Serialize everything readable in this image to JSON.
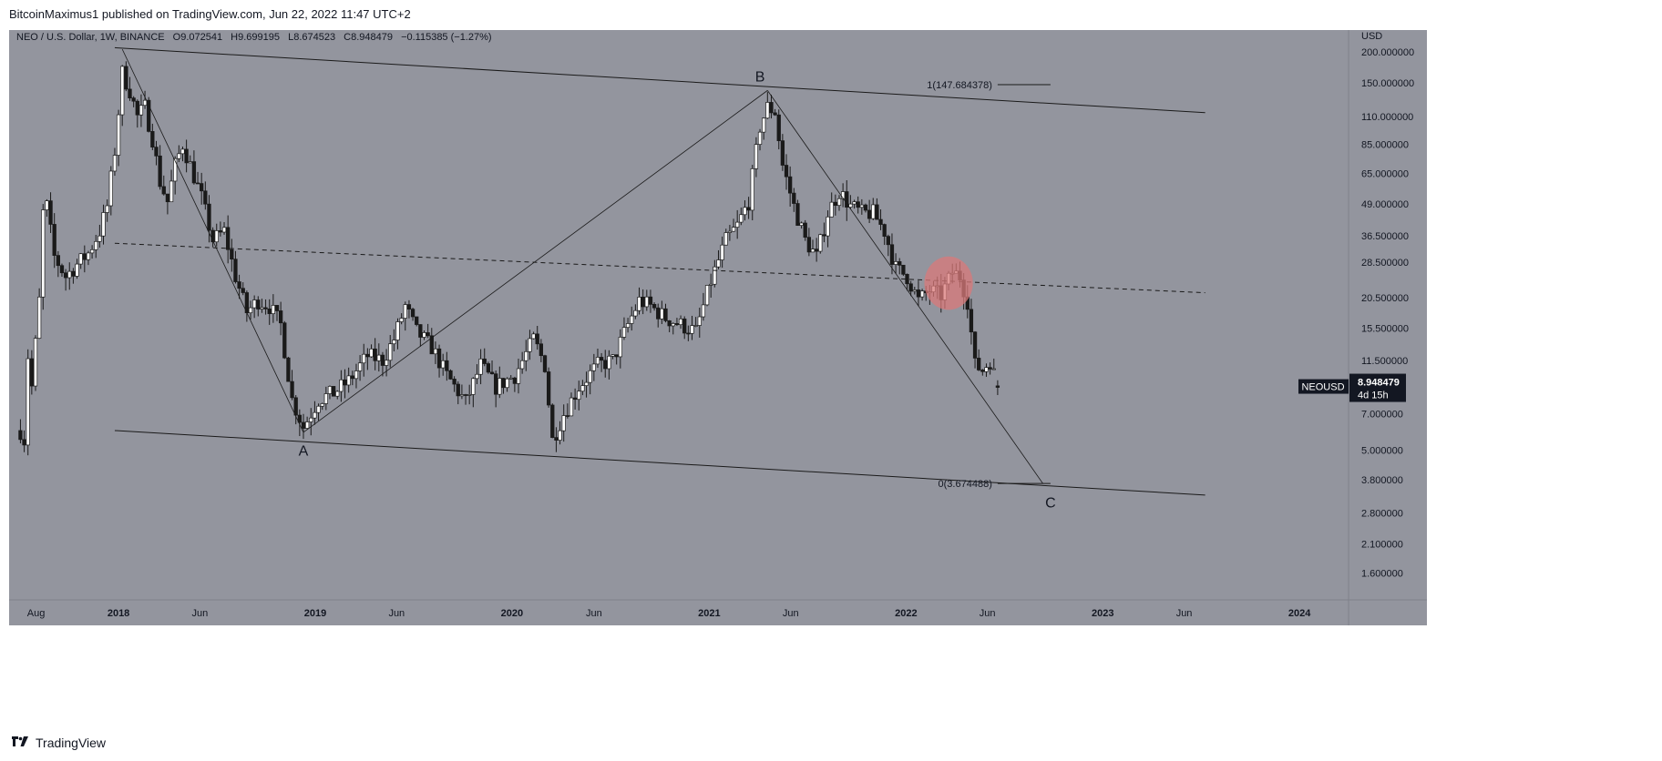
{
  "header": {
    "published": "BitcoinMaximus1 published on TradingView.com, Jun 22, 2022 11:47 UTC+2"
  },
  "footer": {
    "brand": "TradingView",
    "logo_icon": "tradingview-logo-icon"
  },
  "legend": {
    "symbol": "NEO / U.S. Dollar, 1W, BINANCE",
    "o_label": "O",
    "o_value": "9.072541",
    "h_label": "H",
    "h_value": "9.699195",
    "l_label": "L",
    "l_value": "8.674523",
    "c_label": "C",
    "c_value": "8.948479",
    "change": "−0.115385 (−1.27%)"
  },
  "price_tag": {
    "symbol": "NEOUSD",
    "price": "8.948479",
    "countdown": "4d 15h",
    "value": 8.948479
  },
  "colors": {
    "background": "#93959e",
    "candle": "#1a1a1a",
    "line": "#1a1a1a",
    "highlight": "#d97a7a",
    "label_bg": "#131722",
    "axis_bg": "#93959e"
  },
  "chart_data": {
    "type": "candlestick",
    "title": "NEO / U.S. Dollar, 1W, BINANCE",
    "y_unit_label": "USD",
    "y_scale": "log",
    "ylim": [
      1.25,
      245
    ],
    "xlim": [
      "2017-06-12",
      "2024-04-01"
    ],
    "y_ticks": [
      {
        "label": "200.000000",
        "value": 200
      },
      {
        "label": "150.000000",
        "value": 150
      },
      {
        "label": "110.000000",
        "value": 110
      },
      {
        "label": "85.000000",
        "value": 85
      },
      {
        "label": "65.000000",
        "value": 65
      },
      {
        "label": "49.000000",
        "value": 49
      },
      {
        "label": "36.500000",
        "value": 36.5
      },
      {
        "label": "28.500000",
        "value": 28.5
      },
      {
        "label": "20.500000",
        "value": 20.5
      },
      {
        "label": "15.500000",
        "value": 15.5
      },
      {
        "label": "11.500000",
        "value": 11.5
      },
      {
        "label": "7.000000",
        "value": 7
      },
      {
        "label": "5.000000",
        "value": 5
      },
      {
        "label": "3.800000",
        "value": 3.8
      },
      {
        "label": "2.800000",
        "value": 2.8
      },
      {
        "label": "2.100000",
        "value": 2.1
      },
      {
        "label": "1.600000",
        "value": 1.6
      }
    ],
    "x_ticks": [
      {
        "label": "Aug",
        "date": "2017-08-01",
        "bold": false
      },
      {
        "label": "2018",
        "date": "2018-01-01",
        "bold": true
      },
      {
        "label": "Jun",
        "date": "2018-06-01",
        "bold": false
      },
      {
        "label": "2019",
        "date": "2019-01-01",
        "bold": true
      },
      {
        "label": "Jun",
        "date": "2019-06-01",
        "bold": false
      },
      {
        "label": "2020",
        "date": "2020-01-01",
        "bold": true
      },
      {
        "label": "Jun",
        "date": "2020-06-01",
        "bold": false
      },
      {
        "label": "2021",
        "date": "2021-01-01",
        "bold": true
      },
      {
        "label": "Jun",
        "date": "2021-06-01",
        "bold": false
      },
      {
        "label": "2022",
        "date": "2022-01-01",
        "bold": true
      },
      {
        "label": "Jun",
        "date": "2022-06-01",
        "bold": false
      },
      {
        "label": "2023",
        "date": "2023-01-01",
        "bold": true
      },
      {
        "label": "Jun",
        "date": "2023-06-01",
        "bold": false
      },
      {
        "label": "2024",
        "date": "2024-01-01",
        "bold": true
      }
    ],
    "price_path": [
      [
        "2017-07-03",
        6
      ],
      [
        "2017-07-10",
        5.5
      ],
      [
        "2017-07-17",
        12
      ],
      [
        "2017-07-24",
        9
      ],
      [
        "2017-08-07",
        20
      ],
      [
        "2017-08-14",
        45
      ],
      [
        "2017-08-21",
        48
      ],
      [
        "2017-09-04",
        30
      ],
      [
        "2017-09-25",
        25
      ],
      [
        "2017-10-16",
        28
      ],
      [
        "2017-11-06",
        31
      ],
      [
        "2017-11-27",
        38
      ],
      [
        "2017-12-11",
        48
      ],
      [
        "2017-12-25",
        80
      ],
      [
        "2018-01-08",
        165
      ],
      [
        "2018-01-22",
        140
      ],
      [
        "2018-02-05",
        110
      ],
      [
        "2018-02-19",
        120
      ],
      [
        "2018-03-05",
        90
      ],
      [
        "2018-03-19",
        60
      ],
      [
        "2018-04-02",
        50
      ],
      [
        "2018-04-16",
        70
      ],
      [
        "2018-04-30",
        85
      ],
      [
        "2018-05-14",
        70
      ],
      [
        "2018-06-04",
        52
      ],
      [
        "2018-06-25",
        35
      ],
      [
        "2018-07-16",
        38
      ],
      [
        "2018-08-06",
        25
      ],
      [
        "2018-08-27",
        18
      ],
      [
        "2018-09-17",
        20
      ],
      [
        "2018-10-08",
        19
      ],
      [
        "2018-10-29",
        16
      ],
      [
        "2018-11-19",
        8
      ],
      [
        "2018-12-10",
        6.2
      ],
      [
        "2019-01-07",
        8
      ],
      [
        "2019-02-04",
        8.5
      ],
      [
        "2019-03-04",
        9.5
      ],
      [
        "2019-04-08",
        12
      ],
      [
        "2019-05-06",
        11.5
      ],
      [
        "2019-05-27",
        14
      ],
      [
        "2019-06-17",
        19
      ],
      [
        "2019-07-08",
        15
      ],
      [
        "2019-08-05",
        13
      ],
      [
        "2019-09-02",
        10
      ],
      [
        "2019-10-07",
        7.8
      ],
      [
        "2019-11-04",
        11
      ],
      [
        "2019-12-02",
        9
      ],
      [
        "2020-01-06",
        10
      ],
      [
        "2020-02-10",
        14
      ],
      [
        "2020-03-02",
        11
      ],
      [
        "2020-03-16",
        5.5
      ],
      [
        "2020-04-06",
        7
      ],
      [
        "2020-05-04",
        9
      ],
      [
        "2020-06-08",
        11
      ],
      [
        "2020-07-06",
        11.5
      ],
      [
        "2020-08-03",
        16
      ],
      [
        "2020-08-24",
        20
      ],
      [
        "2020-09-14",
        19
      ],
      [
        "2020-10-12",
        17
      ],
      [
        "2020-11-09",
        16
      ],
      [
        "2020-12-07",
        15
      ],
      [
        "2021-01-04",
        24
      ],
      [
        "2021-02-01",
        35
      ],
      [
        "2021-02-22",
        40
      ],
      [
        "2021-03-15",
        50
      ],
      [
        "2021-04-05",
        100
      ],
      [
        "2021-04-19",
        120
      ],
      [
        "2021-05-03",
        115
      ],
      [
        "2021-05-17",
        70
      ],
      [
        "2021-06-07",
        48
      ],
      [
        "2021-06-28",
        35
      ],
      [
        "2021-07-19",
        30
      ],
      [
        "2021-08-09",
        45
      ],
      [
        "2021-08-30",
        55
      ],
      [
        "2021-09-20",
        48
      ],
      [
        "2021-10-11",
        45
      ],
      [
        "2021-11-01",
        45
      ],
      [
        "2021-11-22",
        38
      ],
      [
        "2021-12-13",
        27
      ],
      [
        "2022-01-03",
        25
      ],
      [
        "2022-01-24",
        20
      ],
      [
        "2022-02-14",
        22
      ],
      [
        "2022-03-07",
        21
      ],
      [
        "2022-03-28",
        26
      ],
      [
        "2022-04-11",
        25
      ],
      [
        "2022-04-25",
        20
      ],
      [
        "2022-05-09",
        11
      ],
      [
        "2022-05-23",
        10.5
      ],
      [
        "2022-06-06",
        11.5
      ],
      [
        "2022-06-20",
        8.95
      ]
    ],
    "lines": [
      {
        "name": "channel-top",
        "style": "solid",
        "from": [
          "2017-12-25",
          208
        ],
        "to": [
          "2023-07-10",
          114
        ]
      },
      {
        "name": "channel-bottom",
        "style": "solid",
        "from": [
          "2017-12-25",
          6.0
        ],
        "to": [
          "2023-07-10",
          3.3
        ]
      },
      {
        "name": "channel-middle",
        "style": "dashed",
        "from": [
          "2017-12-25",
          34.0
        ],
        "to": [
          "2023-07-10",
          21.5
        ]
      },
      {
        "name": "wave-a",
        "style": "solid",
        "from": [
          "2018-01-08",
          205
        ],
        "to": [
          "2018-12-10",
          5.9
        ]
      },
      {
        "name": "wave-b",
        "style": "solid",
        "from": [
          "2018-12-10",
          5.9
        ],
        "to": [
          "2021-04-19",
          140
        ]
      },
      {
        "name": "wave-c",
        "style": "solid",
        "from": [
          "2021-04-19",
          140
        ],
        "to": [
          "2022-09-12",
          3.67
        ]
      }
    ],
    "wave_labels": [
      {
        "text": "A",
        "date": "2018-12-10",
        "price": 5.0
      },
      {
        "text": "B",
        "date": "2021-04-05",
        "price": 160
      },
      {
        "text": "C",
        "date": "2022-09-26",
        "price": 3.1
      }
    ],
    "fib_levels": [
      {
        "label": "1(147.684378)",
        "value": 147.684378,
        "from": "2022-02-07",
        "to": "2022-09-26"
      },
      {
        "label": "0(3.674488)",
        "value": 3.674488,
        "from": "2022-02-07",
        "to": "2022-09-26"
      }
    ],
    "highlight": {
      "center_date": "2022-03-21",
      "center_price": 23.5,
      "rx_days": 45,
      "ry_ratio": 1.28
    }
  }
}
